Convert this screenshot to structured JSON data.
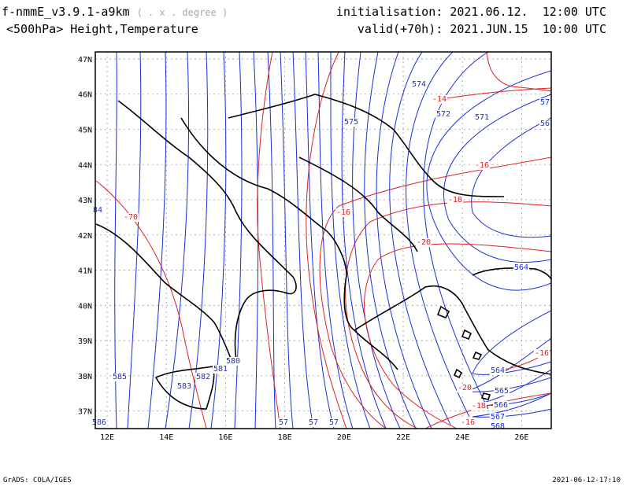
{
  "header": {
    "model": "f-nmmE_v3.9.1-a9km",
    "units": "( . x . degree )",
    "field": "<500hPa> Height,Temperature",
    "init_label": "initialisation:",
    "init_value": "2021.06.12.  12:00 UTC",
    "valid_label": "valid(+70h):",
    "valid_value": "2021.JUN.15  10:00 UTC"
  },
  "footer": {
    "credit": "GrADS: COLA/IGES",
    "timestamp": "2021-06-12-17:10"
  },
  "map": {
    "lon_ticks": [
      "12E",
      "14E",
      "16E",
      "18E",
      "20E",
      "22E",
      "24E",
      "26E"
    ],
    "lat_ticks": [
      "47N",
      "46N",
      "45N",
      "44N",
      "43N",
      "42N",
      "41N",
      "40N",
      "39N",
      "38N",
      "37N"
    ],
    "lon_range": [
      11.6,
      27.0
    ],
    "lat_range": [
      36.5,
      47.2
    ],
    "height_color": "#1a2fd6",
    "temp_color": "#e02020",
    "height_labels": [
      "574",
      "575",
      "572",
      "571",
      "57",
      "56",
      "564",
      "564",
      "565",
      "566",
      "567",
      "568",
      "586",
      "585",
      "583",
      "582",
      "581",
      "580",
      "57",
      "57",
      "57",
      "84"
    ],
    "temp_labels": [
      "-14",
      "-16",
      "-16",
      "-18",
      "-20",
      "-20",
      "-18",
      "-16",
      "-16",
      "-70"
    ]
  }
}
